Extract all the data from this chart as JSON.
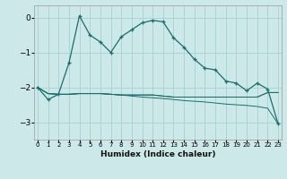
{
  "xlabel": "Humidex (Indice chaleur)",
  "background_color": "#cce8e8",
  "grid_color": "#aad4d4",
  "line_color": "#1a6e6e",
  "x_values": [
    0,
    1,
    2,
    3,
    4,
    5,
    6,
    7,
    8,
    9,
    10,
    11,
    12,
    13,
    14,
    15,
    16,
    17,
    18,
    19,
    20,
    21,
    22,
    23
  ],
  "line1_y": [
    -2.0,
    -2.35,
    -2.2,
    -1.3,
    0.05,
    -0.5,
    -0.7,
    -1.0,
    -0.55,
    -0.35,
    -0.15,
    -0.08,
    -0.12,
    -0.58,
    -0.85,
    -1.2,
    -1.45,
    -1.5,
    -1.82,
    -1.88,
    -2.1,
    -1.88,
    -2.05,
    -3.05
  ],
  "line2_y": [
    -2.0,
    -2.18,
    -2.2,
    -2.2,
    -2.18,
    -2.18,
    -2.18,
    -2.2,
    -2.22,
    -2.22,
    -2.22,
    -2.22,
    -2.25,
    -2.28,
    -2.28,
    -2.28,
    -2.28,
    -2.28,
    -2.28,
    -2.28,
    -2.28,
    -2.28,
    -2.15,
    -2.15
  ],
  "line3_y": [
    -2.0,
    -2.18,
    -2.2,
    -2.2,
    -2.18,
    -2.18,
    -2.18,
    -2.2,
    -2.22,
    -2.22,
    -2.22,
    -2.22,
    -2.25,
    -2.28,
    -2.28,
    -2.28,
    -2.28,
    -2.28,
    -2.28,
    -2.28,
    -2.28,
    -2.28,
    -2.15,
    -2.15
  ],
  "line4_y": [
    -2.0,
    -2.18,
    -2.2,
    -2.2,
    -2.18,
    -2.18,
    -2.18,
    -2.2,
    -2.22,
    -2.25,
    -2.28,
    -2.3,
    -2.32,
    -2.35,
    -2.38,
    -2.4,
    -2.42,
    -2.45,
    -2.48,
    -2.5,
    -2.52,
    -2.55,
    -2.6,
    -3.05
  ],
  "ylim": [
    -3.5,
    0.35
  ],
  "yticks": [
    0,
    -1,
    -2,
    -3
  ],
  "xlim": [
    -0.3,
    23.3
  ]
}
